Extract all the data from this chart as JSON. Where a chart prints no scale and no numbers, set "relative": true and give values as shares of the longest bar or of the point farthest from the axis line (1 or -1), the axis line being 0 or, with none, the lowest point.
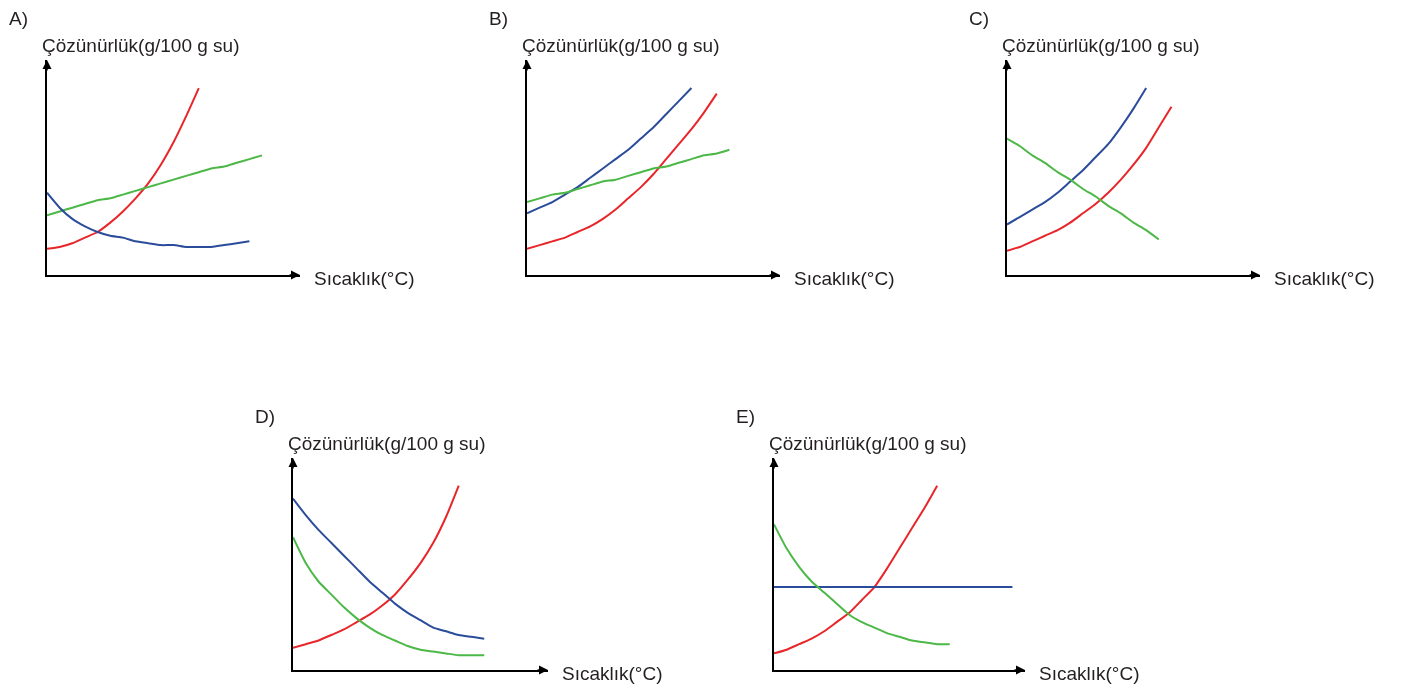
{
  "chart_data": [
    {
      "type": "line",
      "title": "A)",
      "ylabel": "Çözünürlük(g/100 g su)",
      "xlabel": "Sıcaklık(°C)",
      "relative": true,
      "categories": [
        null,
        null,
        null,
        null,
        null,
        null,
        null,
        null,
        null,
        null,
        null,
        null,
        null,
        null,
        null,
        null,
        null,
        null,
        null,
        null,
        null
      ],
      "series": [
        {
          "color": "#e8262a",
          "values": [
            0.14,
            0.15,
            0.17,
            0.2,
            0.23,
            0.28,
            0.34,
            0.41,
            0.49,
            0.59,
            0.71,
            0.85,
            1.0,
            null,
            null,
            null,
            null,
            null,
            null,
            null,
            null
          ]
        },
        {
          "color": "#4cb847",
          "values": [
            0.32,
            0.34,
            0.36,
            0.38,
            0.4,
            0.41,
            0.43,
            0.45,
            0.47,
            0.49,
            0.51,
            0.53,
            0.55,
            0.57,
            0.58,
            0.6,
            0.62,
            0.64,
            null,
            null,
            null
          ]
        },
        {
          "color": "#2b4c9b",
          "values": [
            0.44,
            0.36,
            0.3,
            0.26,
            0.23,
            0.21,
            0.2,
            0.18,
            0.17,
            0.16,
            0.16,
            0.15,
            0.15,
            0.15,
            0.16,
            0.17,
            0.18,
            null,
            null,
            null,
            null
          ]
        }
      ]
    },
    {
      "type": "line",
      "title": "B)",
      "ylabel": "Çözünürlük(g/100 g su)",
      "xlabel": "Sıcaklık(°C)",
      "relative": true,
      "categories": [
        null,
        null,
        null,
        null,
        null,
        null,
        null,
        null,
        null,
        null,
        null,
        null,
        null,
        null,
        null,
        null,
        null,
        null,
        null,
        null,
        null
      ],
      "series": [
        {
          "color": "#2b4c9b",
          "values": [
            0.33,
            0.36,
            0.39,
            0.43,
            0.47,
            0.52,
            0.57,
            0.62,
            0.67,
            0.73,
            0.79,
            0.86,
            0.93,
            1.0,
            null,
            null,
            null,
            null,
            null,
            null,
            null
          ]
        },
        {
          "color": "#e8262a",
          "values": [
            0.14,
            0.16,
            0.18,
            0.2,
            0.23,
            0.26,
            0.3,
            0.35,
            0.41,
            0.47,
            0.54,
            0.62,
            0.7,
            0.78,
            0.87,
            0.97,
            null,
            null,
            null,
            null,
            null
          ]
        },
        {
          "color": "#4cb847",
          "values": [
            0.39,
            0.41,
            0.43,
            0.44,
            0.46,
            0.48,
            0.5,
            0.51,
            0.53,
            0.55,
            0.57,
            0.58,
            0.6,
            0.62,
            0.64,
            0.65,
            0.67,
            null,
            null,
            null,
            null
          ]
        }
      ]
    },
    {
      "type": "line",
      "title": "C)",
      "ylabel": "Çözünürlük(g/100 g su)",
      "xlabel": "Sıcaklık(°C)",
      "relative": true,
      "categories": [
        null,
        null,
        null,
        null,
        null,
        null,
        null,
        null,
        null,
        null,
        null,
        null,
        null,
        null,
        null,
        null,
        null,
        null,
        null,
        null,
        null
      ],
      "series": [
        {
          "color": "#2b4c9b",
          "values": [
            0.27,
            0.31,
            0.35,
            0.39,
            0.44,
            0.5,
            0.56,
            0.63,
            0.7,
            0.79,
            0.89,
            1.0,
            null,
            null,
            null,
            null,
            null,
            null,
            null,
            null,
            null
          ]
        },
        {
          "color": "#e8262a",
          "values": [
            0.13,
            0.15,
            0.18,
            0.21,
            0.24,
            0.28,
            0.33,
            0.38,
            0.44,
            0.51,
            0.59,
            0.68,
            0.79,
            0.9,
            null,
            null,
            null,
            null,
            null,
            null,
            null
          ]
        },
        {
          "color": "#4cb847",
          "values": [
            0.73,
            0.69,
            0.64,
            0.6,
            0.55,
            0.51,
            0.46,
            0.42,
            0.37,
            0.33,
            0.28,
            0.24,
            0.19,
            null,
            null,
            null,
            null,
            null,
            null,
            null,
            null
          ]
        }
      ]
    },
    {
      "type": "line",
      "title": "D)",
      "ylabel": "Çözünürlük(g/100 g su)",
      "xlabel": "Sıcaklık(°C)",
      "relative": true,
      "categories": [
        null,
        null,
        null,
        null,
        null,
        null,
        null,
        null,
        null,
        null,
        null,
        null,
        null,
        null,
        null,
        null,
        null,
        null,
        null,
        null,
        null
      ],
      "series": [
        {
          "color": "#e8262a",
          "values": [
            0.12,
            0.14,
            0.16,
            0.19,
            0.22,
            0.26,
            0.3,
            0.35,
            0.41,
            0.49,
            0.58,
            0.69,
            0.83,
            1.0,
            null,
            null,
            null,
            null,
            null,
            null,
            null
          ]
        },
        {
          "color": "#2b4c9b",
          "values": [
            0.93,
            0.84,
            0.76,
            0.69,
            0.62,
            0.55,
            0.48,
            0.42,
            0.36,
            0.31,
            0.27,
            0.23,
            0.21,
            0.19,
            0.18,
            0.17,
            null,
            null,
            null,
            null,
            null
          ]
        },
        {
          "color": "#4cb847",
          "values": [
            0.72,
            0.58,
            0.48,
            0.41,
            0.34,
            0.28,
            0.23,
            0.19,
            0.16,
            0.13,
            0.11,
            0.1,
            0.09,
            0.08,
            0.08,
            0.08,
            null,
            null,
            null,
            null,
            null
          ]
        }
      ]
    },
    {
      "type": "line",
      "title": "E)",
      "ylabel": "Çözünürlük(g/100 g su)",
      "xlabel": "Sıcaklık(°C)",
      "relative": true,
      "categories": [
        null,
        null,
        null,
        null,
        null,
        null,
        null,
        null,
        null,
        null,
        null,
        null,
        null,
        null,
        null,
        null,
        null,
        null,
        null,
        null,
        null
      ],
      "series": [
        {
          "color": "#e8262a",
          "values": [
            0.09,
            0.11,
            0.14,
            0.17,
            0.21,
            0.26,
            0.31,
            0.38,
            0.45,
            0.55,
            0.66,
            0.77,
            0.88,
            1.0,
            null,
            null,
            null,
            null,
            null,
            null,
            null
          ]
        },
        {
          "color": "#2b4c9b",
          "values": [
            0.45,
            0.45,
            0.45,
            0.45,
            0.45,
            0.45,
            0.45,
            0.45,
            0.45,
            0.45,
            0.45,
            0.45,
            0.45,
            0.45,
            0.45,
            0.45,
            0.45,
            0.45,
            0.45,
            0.45,
            null
          ]
        },
        {
          "color": "#4cb847",
          "values": [
            0.79,
            0.66,
            0.56,
            0.48,
            0.42,
            0.36,
            0.3,
            0.26,
            0.23,
            0.2,
            0.18,
            0.16,
            0.15,
            0.14,
            0.14,
            null,
            null,
            null,
            null,
            null,
            null
          ]
        }
      ]
    }
  ]
}
